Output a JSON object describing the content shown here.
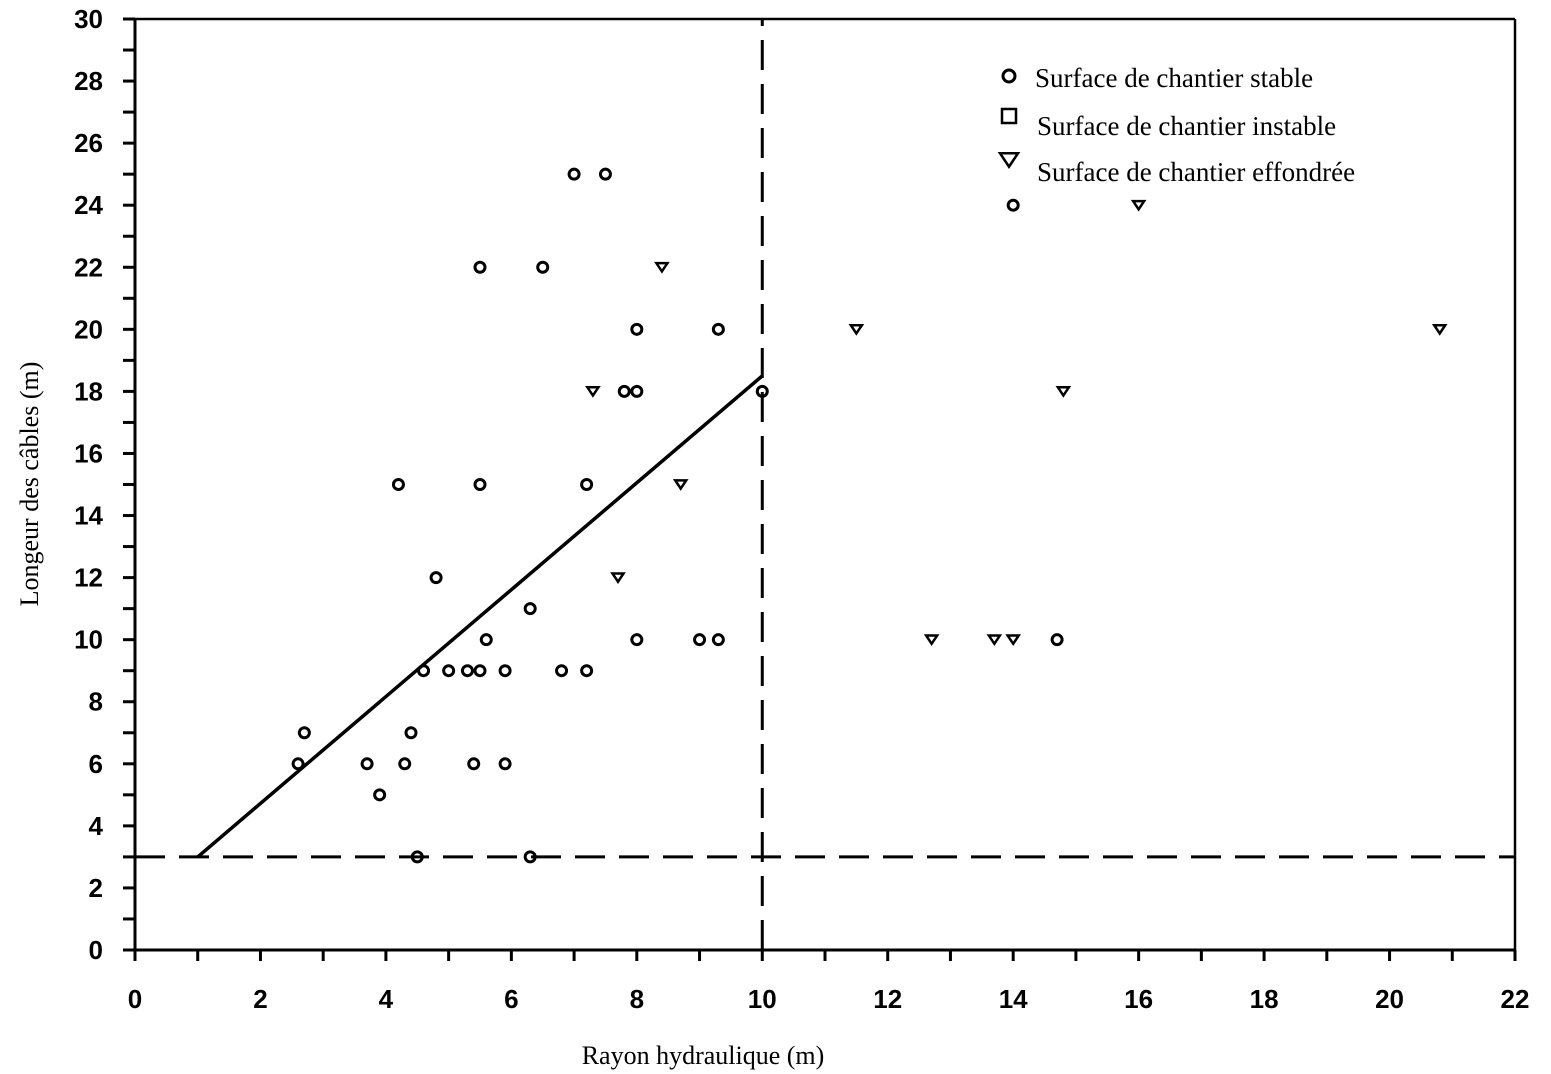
{
  "chart_data": {
    "type": "scatter",
    "xlabel": "Rayon hydraulique (m)",
    "ylabel": "Longeur des câbles (m)",
    "xlim": [
      0,
      22
    ],
    "ylim": [
      0,
      30
    ],
    "x_ticks": [
      0,
      2,
      4,
      6,
      8,
      10,
      12,
      14,
      16,
      18,
      20,
      22
    ],
    "y_ticks": [
      0,
      2,
      4,
      6,
      8,
      10,
      12,
      14,
      16,
      18,
      20,
      22,
      24,
      26,
      28,
      30
    ],
    "grid": false,
    "legend_position": "top-right",
    "series": [
      {
        "name": "Surface de chantier stable",
        "marker": "circle",
        "points": [
          [
            7.0,
            25
          ],
          [
            7.5,
            25
          ],
          [
            14.0,
            24
          ],
          [
            5.5,
            22
          ],
          [
            6.5,
            22
          ],
          [
            8.0,
            20
          ],
          [
            9.3,
            20
          ],
          [
            7.8,
            18
          ],
          [
            8.0,
            18
          ],
          [
            10.0,
            18
          ],
          [
            4.2,
            15
          ],
          [
            5.5,
            15
          ],
          [
            7.2,
            15
          ],
          [
            4.8,
            12
          ],
          [
            6.3,
            11
          ],
          [
            5.6,
            10
          ],
          [
            8.0,
            10
          ],
          [
            9.0,
            10
          ],
          [
            9.3,
            10
          ],
          [
            14.7,
            10
          ],
          [
            4.6,
            9
          ],
          [
            5.0,
            9
          ],
          [
            5.3,
            9
          ],
          [
            5.5,
            9
          ],
          [
            5.9,
            9
          ],
          [
            6.8,
            9
          ],
          [
            7.2,
            9
          ],
          [
            2.7,
            7
          ],
          [
            4.4,
            7
          ],
          [
            2.6,
            6
          ],
          [
            3.7,
            6
          ],
          [
            4.3,
            6
          ],
          [
            5.4,
            6
          ],
          [
            5.9,
            6
          ],
          [
            3.9,
            5
          ],
          [
            4.5,
            3
          ],
          [
            6.3,
            3
          ]
        ]
      },
      {
        "name": "Surface de chantier instable",
        "marker": "square",
        "points": []
      },
      {
        "name": "Surface de chantier effondrée",
        "marker": "triangle-down",
        "points": [
          [
            16.0,
            24
          ],
          [
            8.4,
            22
          ],
          [
            11.5,
            20
          ],
          [
            20.8,
            20
          ],
          [
            7.3,
            18
          ],
          [
            14.8,
            18
          ],
          [
            8.7,
            15
          ],
          [
            7.7,
            12
          ],
          [
            12.7,
            10
          ],
          [
            13.7,
            10
          ],
          [
            14.0,
            10
          ]
        ]
      }
    ],
    "reference_lines": [
      {
        "style": "solid",
        "points": [
          [
            1,
            3
          ],
          [
            10,
            18.5
          ]
        ]
      },
      {
        "style": "dashed",
        "points": [
          [
            10,
            0
          ],
          [
            10,
            30
          ]
        ]
      },
      {
        "style": "dashed",
        "points": [
          [
            0,
            3
          ],
          [
            22,
            3
          ]
        ]
      }
    ]
  }
}
